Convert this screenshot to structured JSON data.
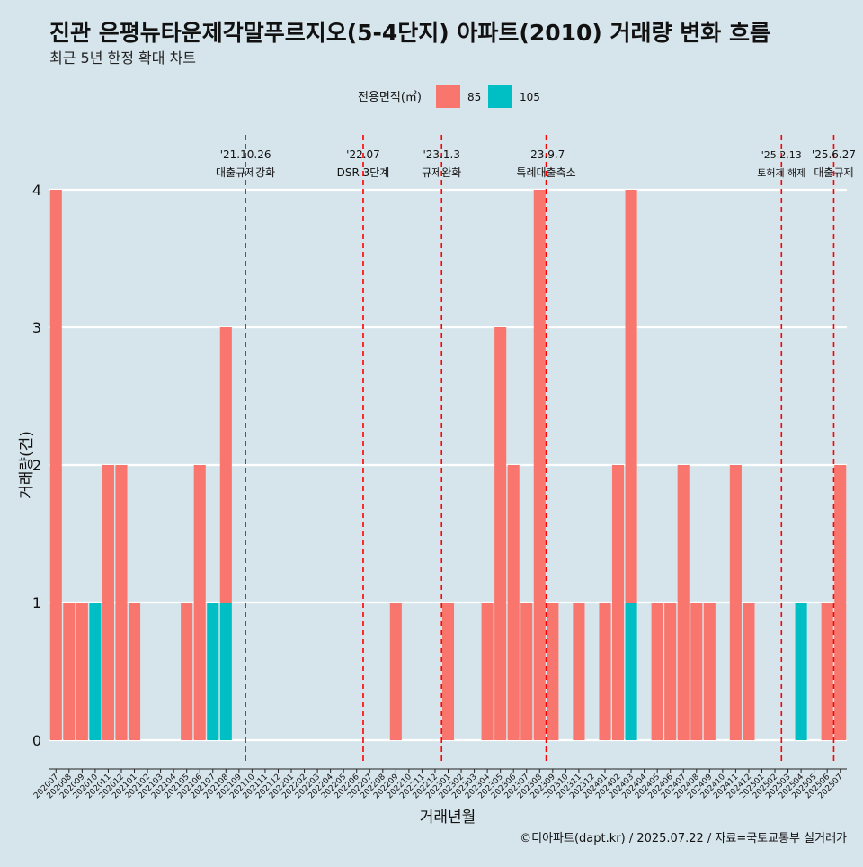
{
  "header": {
    "title": "진관 은평뉴타운제각말푸르지오(5-4단지) 아파트(2010) 거래량 변화 흐름",
    "subtitle": "최근 5년 한정 확대 차트"
  },
  "legend": {
    "title": "전용면적(㎡)",
    "position": "top-center",
    "items": [
      {
        "label": "85",
        "color": "#F8766D"
      },
      {
        "label": "105",
        "color": "#00BFC4"
      }
    ]
  },
  "footer": {
    "caption": "©디아파트(dapt.kr) / 2025.07.22 / 자료=국토교통부 실거래가"
  },
  "colors": {
    "background": "#d6e4eb",
    "grid": "#ffffff",
    "event_line": "#ff0000"
  },
  "chart_data": {
    "type": "bar",
    "xlabel": "거래년월",
    "ylabel": "거래량(건)",
    "ylim": [
      0,
      4
    ],
    "y_ticks": [
      0,
      1,
      2,
      3,
      4
    ],
    "grid": true,
    "categories": [
      "202007",
      "202008",
      "202009",
      "202010",
      "202011",
      "202012",
      "202101",
      "202102",
      "202103",
      "202104",
      "202105",
      "202106",
      "202107",
      "202108",
      "202109",
      "202110",
      "202111",
      "202112",
      "202201",
      "202202",
      "202203",
      "202204",
      "202205",
      "202206",
      "202207",
      "202208",
      "202209",
      "202210",
      "202211",
      "202212",
      "202301",
      "202302",
      "202303",
      "202304",
      "202305",
      "202306",
      "202307",
      "202308",
      "202309",
      "202310",
      "202311",
      "202312",
      "202401",
      "202402",
      "202403",
      "202404",
      "202405",
      "202406",
      "202407",
      "202408",
      "202409",
      "202410",
      "202411",
      "202412",
      "202501",
      "202502",
      "202503",
      "202504",
      "202505",
      "202506",
      "202507"
    ],
    "series": [
      {
        "name": "85",
        "color": "#F8766D",
        "values": [
          4,
          1,
          1,
          0,
          2,
          2,
          1,
          0,
          0,
          0,
          1,
          2,
          0,
          2,
          0,
          0,
          0,
          0,
          0,
          0,
          0,
          0,
          0,
          0,
          0,
          0,
          1,
          0,
          0,
          0,
          1,
          0,
          0,
          1,
          3,
          2,
          1,
          4,
          1,
          0,
          1,
          0,
          1,
          2,
          3,
          0,
          1,
          1,
          2,
          1,
          1,
          0,
          2,
          1,
          0,
          0,
          0,
          0,
          0,
          1,
          2
        ]
      },
      {
        "name": "105",
        "color": "#00BFC4",
        "values": [
          0,
          0,
          0,
          1,
          0,
          0,
          0,
          0,
          0,
          0,
          0,
          0,
          1,
          1,
          0,
          0,
          0,
          0,
          0,
          0,
          0,
          0,
          0,
          0,
          0,
          0,
          0,
          0,
          0,
          0,
          0,
          0,
          0,
          0,
          0,
          0,
          0,
          0,
          0,
          0,
          0,
          0,
          0,
          0,
          1,
          0,
          0,
          0,
          0,
          0,
          0,
          0,
          0,
          0,
          0,
          0,
          0,
          1,
          0,
          0,
          0
        ]
      }
    ],
    "annotations": [
      {
        "date": "'21.10.26",
        "label": "대출규제강화",
        "at": "202110"
      },
      {
        "date": "'22.07",
        "label": "DSR 3단계",
        "at": "202207"
      },
      {
        "date": "'23.1.3",
        "label": "규제완화",
        "at": "202301"
      },
      {
        "date": "'23.9.7",
        "label": "특례대출축소",
        "at": "202309"
      },
      {
        "date": "'25.2.13",
        "label": "토허제 해제",
        "at": "202503"
      },
      {
        "date": "'25.6.27",
        "label": "대출규제",
        "at": "202507"
      }
    ]
  }
}
